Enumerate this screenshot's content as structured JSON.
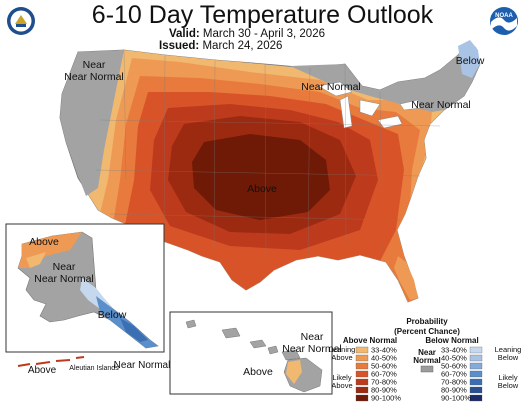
{
  "header": {
    "title": "6-10 Day Temperature Outlook",
    "valid_label": "Valid:",
    "valid_value": "March 30 - April 3, 2026",
    "issued_label": "Issued:",
    "issued_value": "March 24, 2026"
  },
  "logos": {
    "left": "doc-seal-icon",
    "right": "noaa-logo-icon",
    "right_text": "NOAA"
  },
  "map_labels": {
    "conus_near_normal_west": "Near Normal",
    "conus_near_normal_lakes": "Near Normal",
    "conus_near_normal_northeast": "Near Normal",
    "conus_below": "Below",
    "conus_above": "Above",
    "alaska_above": "Above",
    "alaska_near_normal": "Near Normal",
    "alaska_below": "Below",
    "aleutian_above": "Above",
    "aleutian_islands": "Aleutian Islands",
    "aleutian_near_normal": "Near Normal",
    "hawaii_near_normal": "Near Normal",
    "hawaii_above": "Above"
  },
  "legend": {
    "title_line1": "Probability",
    "title_line2": "(Percent Chance)",
    "above_header": "Above Normal",
    "below_header": "Below Normal",
    "near_header": "Near Normal",
    "leaning_above": "Leaning Above",
    "likely_above": "Likely Above",
    "leaning_below": "Leaning Below",
    "likely_below": "Likely Below",
    "above_colors": [
      "#f1b870",
      "#ee9a55",
      "#e77a3c",
      "#d85428",
      "#bd3a1c",
      "#9c2a10",
      "#6f1a06"
    ],
    "below_colors": [
      "#c6d8ee",
      "#a9c3e5",
      "#83abda",
      "#5a8fcb",
      "#3b6fb4",
      "#294f92",
      "#1c2a6c"
    ],
    "near_color": "#9c9c9c",
    "ranges": [
      "33-40%",
      "40-50%",
      "50-60%",
      "60-70%",
      "70-80%",
      "80-90%",
      "90-100%"
    ]
  }
}
